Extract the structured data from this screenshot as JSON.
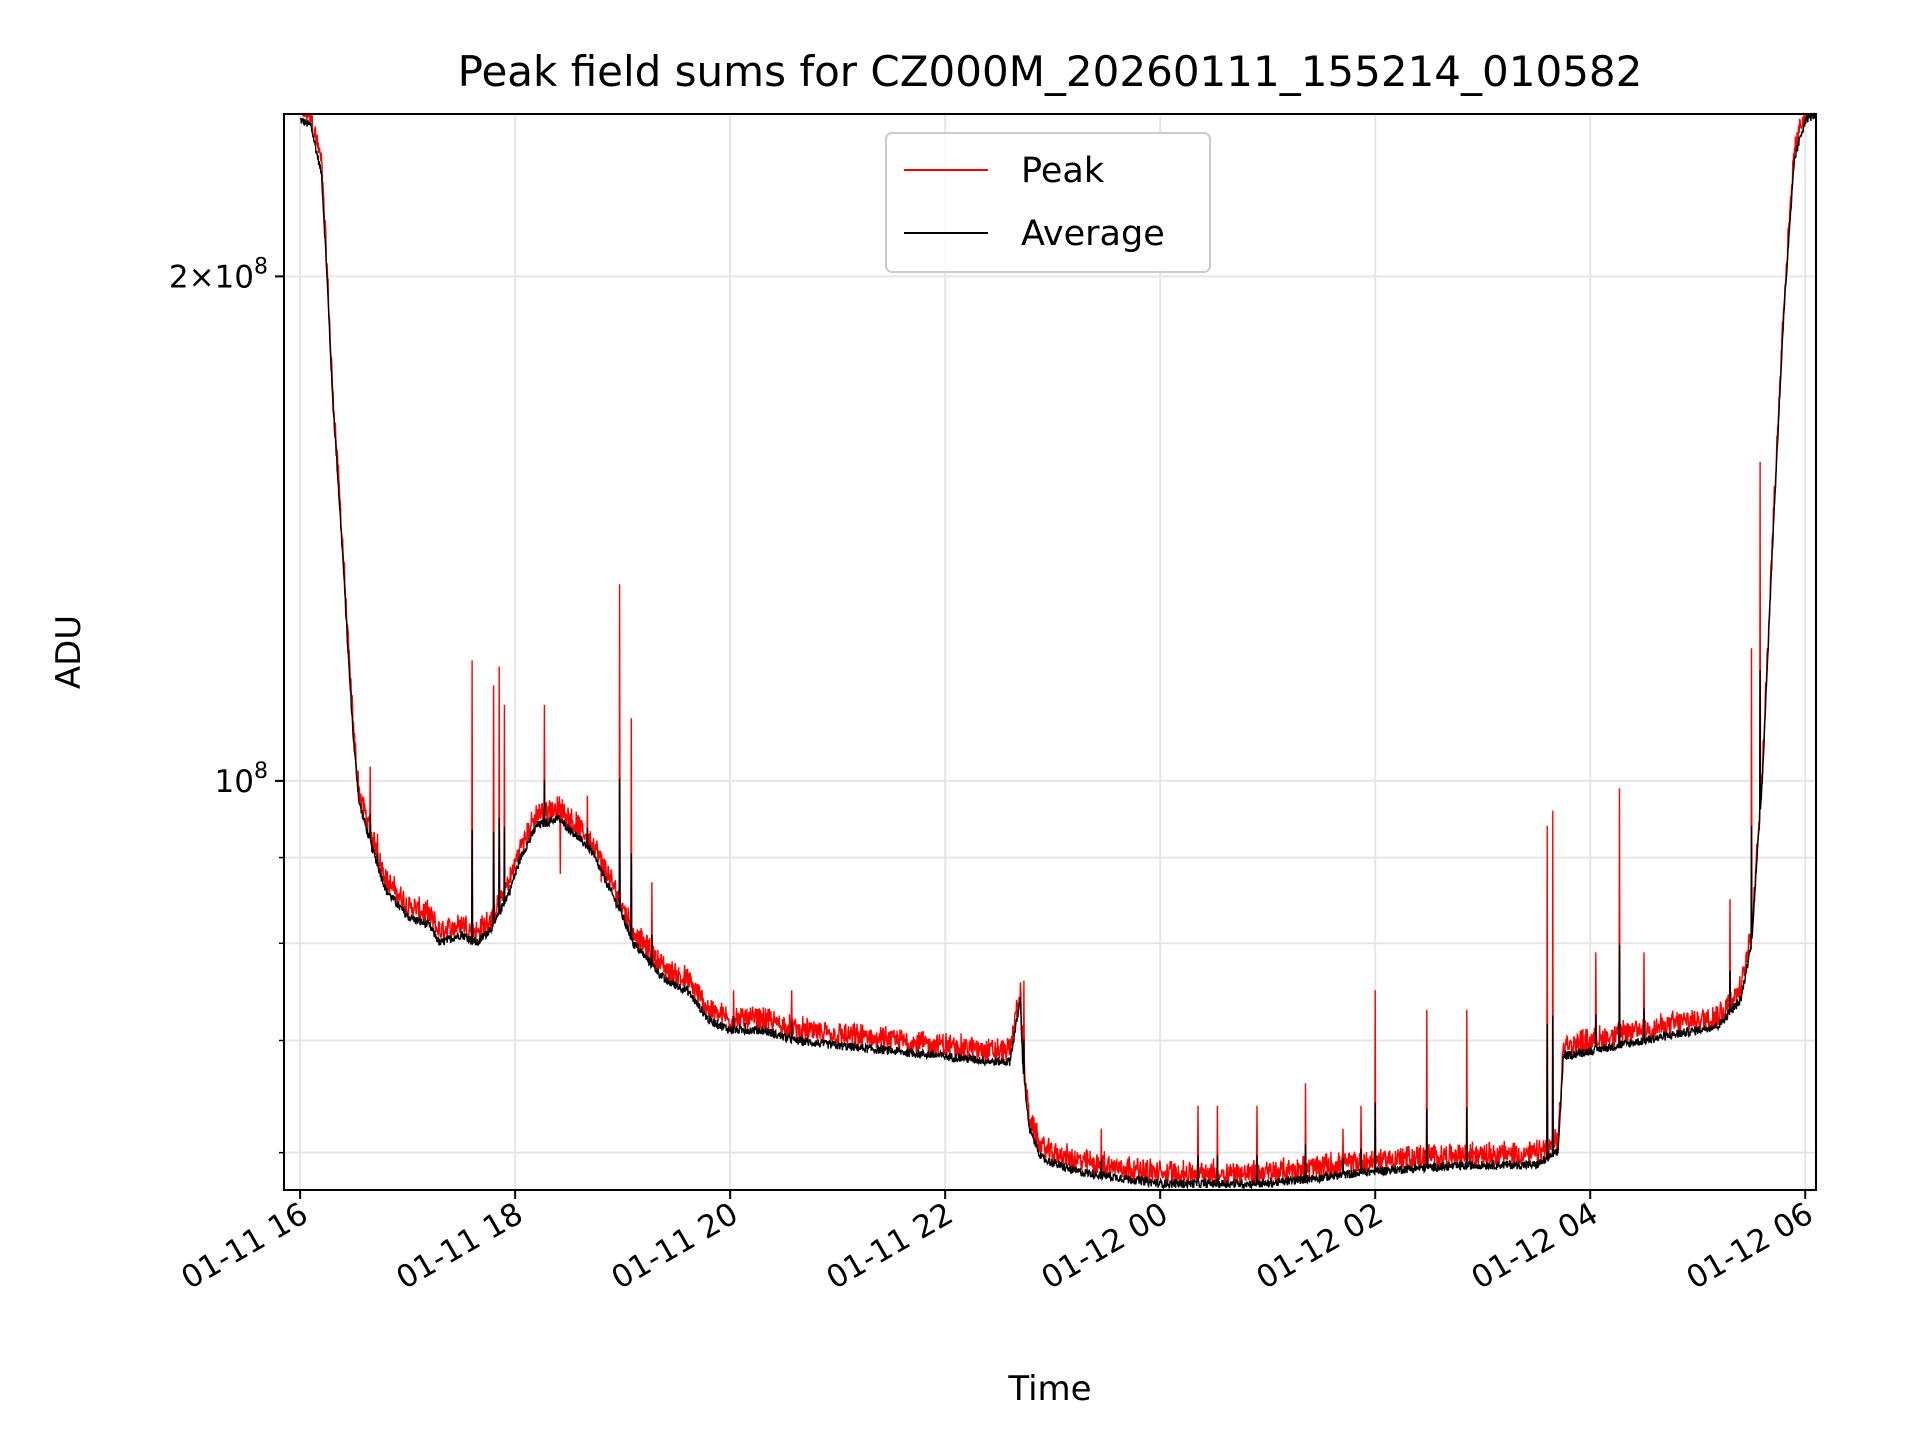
{
  "chart_data": {
    "type": "line",
    "title": "Peak field sums for CZ000M_20260111_155214_010582",
    "xlabel": "Time",
    "ylabel": "ADU",
    "yscale": "log",
    "xlim_hours": [
      -0.15,
      14.1
    ],
    "ylim": [
      57000000,
      250000000
    ],
    "x_ticks": [
      {
        "hour": 0,
        "label": "01-11 16"
      },
      {
        "hour": 2,
        "label": "01-11 18"
      },
      {
        "hour": 4,
        "label": "01-11 20"
      },
      {
        "hour": 6,
        "label": "01-11 22"
      },
      {
        "hour": 8,
        "label": "01-12 00"
      },
      {
        "hour": 10,
        "label": "01-12 02"
      },
      {
        "hour": 12,
        "label": "01-12 04"
      },
      {
        "hour": 14,
        "label": "01-12 06"
      }
    ],
    "y_major_ticks": [
      {
        "value": 100000000,
        "label_base": "10",
        "label_exp": "8"
      },
      {
        "value": 200000000,
        "label_base": "2×10",
        "label_exp": "8"
      }
    ],
    "y_minor_ticks": [
      60000000,
      70000000,
      80000000,
      90000000
    ],
    "grid": true,
    "legend_position": "top-center",
    "series": [
      {
        "name": "Peak",
        "color": "#ff0000"
      },
      {
        "name": "Average",
        "color": "#000000"
      }
    ],
    "average_curve": [
      [
        0.0,
        248000000
      ],
      [
        0.1,
        246000000
      ],
      [
        0.2,
        230000000
      ],
      [
        0.25,
        200000000
      ],
      [
        0.3,
        170000000
      ],
      [
        0.35,
        152000000
      ],
      [
        0.4,
        135000000
      ],
      [
        0.45,
        118000000
      ],
      [
        0.5,
        105000000
      ],
      [
        0.55,
        97000000
      ],
      [
        0.65,
        92000000
      ],
      [
        0.8,
        86000000
      ],
      [
        1.0,
        83000000
      ],
      [
        1.2,
        82000000
      ],
      [
        1.3,
        80000000
      ],
      [
        1.5,
        81000000
      ],
      [
        1.65,
        80000000
      ],
      [
        1.8,
        82000000
      ],
      [
        1.95,
        86000000
      ],
      [
        2.05,
        90000000
      ],
      [
        2.2,
        94000000
      ],
      [
        2.4,
        95000000
      ],
      [
        2.55,
        93000000
      ],
      [
        2.7,
        91000000
      ],
      [
        2.85,
        87000000
      ],
      [
        3.0,
        83000000
      ],
      [
        3.1,
        80000000
      ],
      [
        3.25,
        78000000
      ],
      [
        3.4,
        76000000
      ],
      [
        3.6,
        75000000
      ],
      [
        3.8,
        72000000
      ],
      [
        4.0,
        71000000
      ],
      [
        4.3,
        71000000
      ],
      [
        4.6,
        70000000
      ],
      [
        5.0,
        69500000
      ],
      [
        5.5,
        69000000
      ],
      [
        6.0,
        68500000
      ],
      [
        6.45,
        68000000
      ],
      [
        6.6,
        68000000
      ],
      [
        6.7,
        74000000
      ],
      [
        6.72,
        68000000
      ],
      [
        6.78,
        62000000
      ],
      [
        6.9,
        59500000
      ],
      [
        7.2,
        58500000
      ],
      [
        7.6,
        58000000
      ],
      [
        8.0,
        57500000
      ],
      [
        8.5,
        57500000
      ],
      [
        9.0,
        57500000
      ],
      [
        9.5,
        58000000
      ],
      [
        10.0,
        58500000
      ],
      [
        10.5,
        58800000
      ],
      [
        11.0,
        59000000
      ],
      [
        11.5,
        59000000
      ],
      [
        11.7,
        60000000
      ],
      [
        11.75,
        68500000
      ],
      [
        12.0,
        69000000
      ],
      [
        12.5,
        70000000
      ],
      [
        13.0,
        71000000
      ],
      [
        13.2,
        71500000
      ],
      [
        13.4,
        74000000
      ],
      [
        13.5,
        80000000
      ],
      [
        13.6,
        100000000
      ],
      [
        13.7,
        140000000
      ],
      [
        13.8,
        190000000
      ],
      [
        13.9,
        235000000
      ],
      [
        14.0,
        248000000
      ],
      [
        14.1,
        250000000
      ]
    ],
    "peak_spikes": [
      [
        0.65,
        102000000
      ],
      [
        0.72,
        93000000
      ],
      [
        1.6,
        118000000
      ],
      [
        1.8,
        114000000
      ],
      [
        1.85,
        117000000
      ],
      [
        1.9,
        111000000
      ],
      [
        2.27,
        111000000
      ],
      [
        2.42,
        88000000
      ],
      [
        2.67,
        98000000
      ],
      [
        2.8,
        87000000
      ],
      [
        2.97,
        131000000
      ],
      [
        3.08,
        109000000
      ],
      [
        3.27,
        87000000
      ],
      [
        4.03,
        75000000
      ],
      [
        4.14,
        73000000
      ],
      [
        4.57,
        75000000
      ],
      [
        6.73,
        76000000
      ],
      [
        7.45,
        62000000
      ],
      [
        8.35,
        64000000
      ],
      [
        8.53,
        64000000
      ],
      [
        8.9,
        64000000
      ],
      [
        9.35,
        66000000
      ],
      [
        9.7,
        62000000
      ],
      [
        9.87,
        64000000
      ],
      [
        10.0,
        75000000
      ],
      [
        10.48,
        73000000
      ],
      [
        10.85,
        73000000
      ],
      [
        11.6,
        94000000
      ],
      [
        11.65,
        96000000
      ],
      [
        12.05,
        79000000
      ],
      [
        12.27,
        99000000
      ],
      [
        12.5,
        79000000
      ],
      [
        13.3,
        85000000
      ],
      [
        13.5,
        120000000
      ],
      [
        13.58,
        155000000
      ]
    ]
  }
}
